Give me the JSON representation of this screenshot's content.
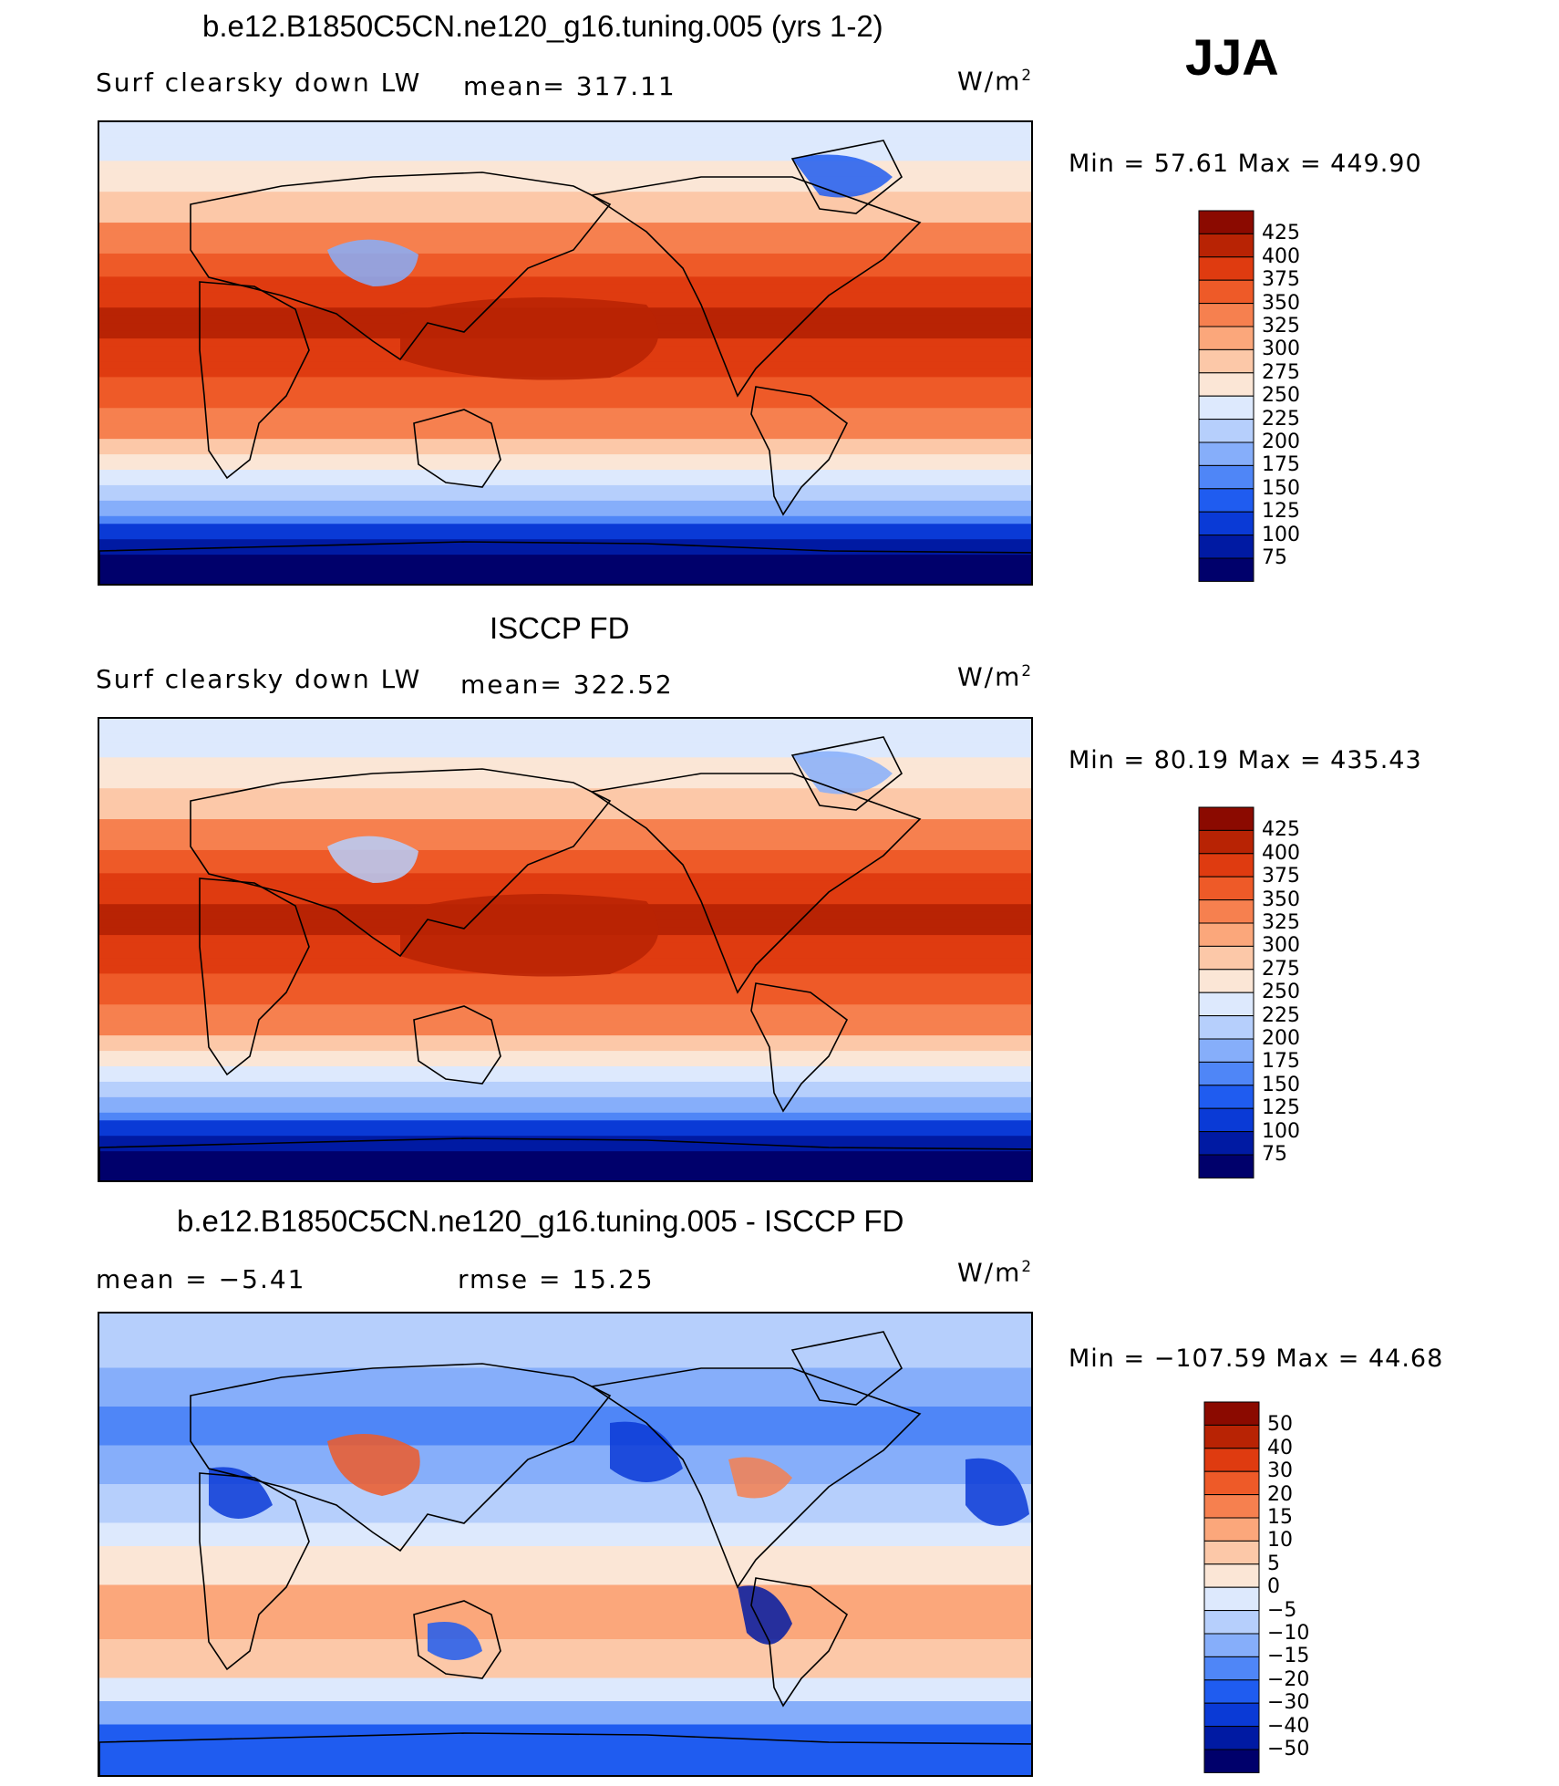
{
  "season": "JJA",
  "colors": {
    "full_scale": [
      "#00006b",
      "#001aa3",
      "#0a3ad6",
      "#1f5cf0",
      "#4f86f7",
      "#86aefa",
      "#b6cffc",
      "#dde9fd",
      "#fbe6d6",
      "#fcc8a8",
      "#fba77b",
      "#f6804f",
      "#ee5a28",
      "#df3b10",
      "#b82304",
      "#8b0a00"
    ],
    "diff_scale": [
      "#00006b",
      "#001aa3",
      "#0a3ad6",
      "#1f5cf0",
      "#4f86f7",
      "#86aefa",
      "#b6cffc",
      "#dde9fd",
      "#fbe6d6",
      "#fcc8a8",
      "#fba77b",
      "#f6804f",
      "#ee5a28",
      "#df3b10",
      "#b82304",
      "#8b0a00"
    ]
  },
  "panels": [
    {
      "title": "b.e12.B1850C5CN.ne120_g16.tuning.005 (yrs 1-2)",
      "left_label": "Surf clearsky down LW",
      "stat_label": "mean= 317.11",
      "units": "W/m",
      "units_sup": "2",
      "minmax": "Min =   57.61  Max =  449.90",
      "colorbar_labels": [
        "425",
        "400",
        "375",
        "350",
        "325",
        "300",
        "275",
        "250",
        "225",
        "200",
        "175",
        "150",
        "125",
        "100",
        "75"
      ],
      "kind": "model"
    },
    {
      "title": "ISCCP FD",
      "left_label": "Surf clearsky down LW",
      "stat_label": "mean= 322.52",
      "units": "W/m",
      "units_sup": "2",
      "minmax": "Min =   80.19  Max =  435.43",
      "colorbar_labels": [
        "425",
        "400",
        "375",
        "350",
        "325",
        "300",
        "275",
        "250",
        "225",
        "200",
        "175",
        "150",
        "125",
        "100",
        "75"
      ],
      "kind": "obs"
    },
    {
      "title": "b.e12.B1850C5CN.ne120_g16.tuning.005 - ISCCP FD",
      "left_label": "mean =   −5.41",
      "stat_label": "rmse =    15.25",
      "units": "W/m",
      "units_sup": "2",
      "minmax": "Min = −107.59  Max =   44.68",
      "colorbar_labels": [
        "50",
        "40",
        "30",
        "20",
        "15",
        "10",
        "5",
        "0",
        "−5",
        "−10",
        "−15",
        "−20",
        "−30",
        "−40",
        "−50"
      ],
      "kind": "diff"
    }
  ]
}
